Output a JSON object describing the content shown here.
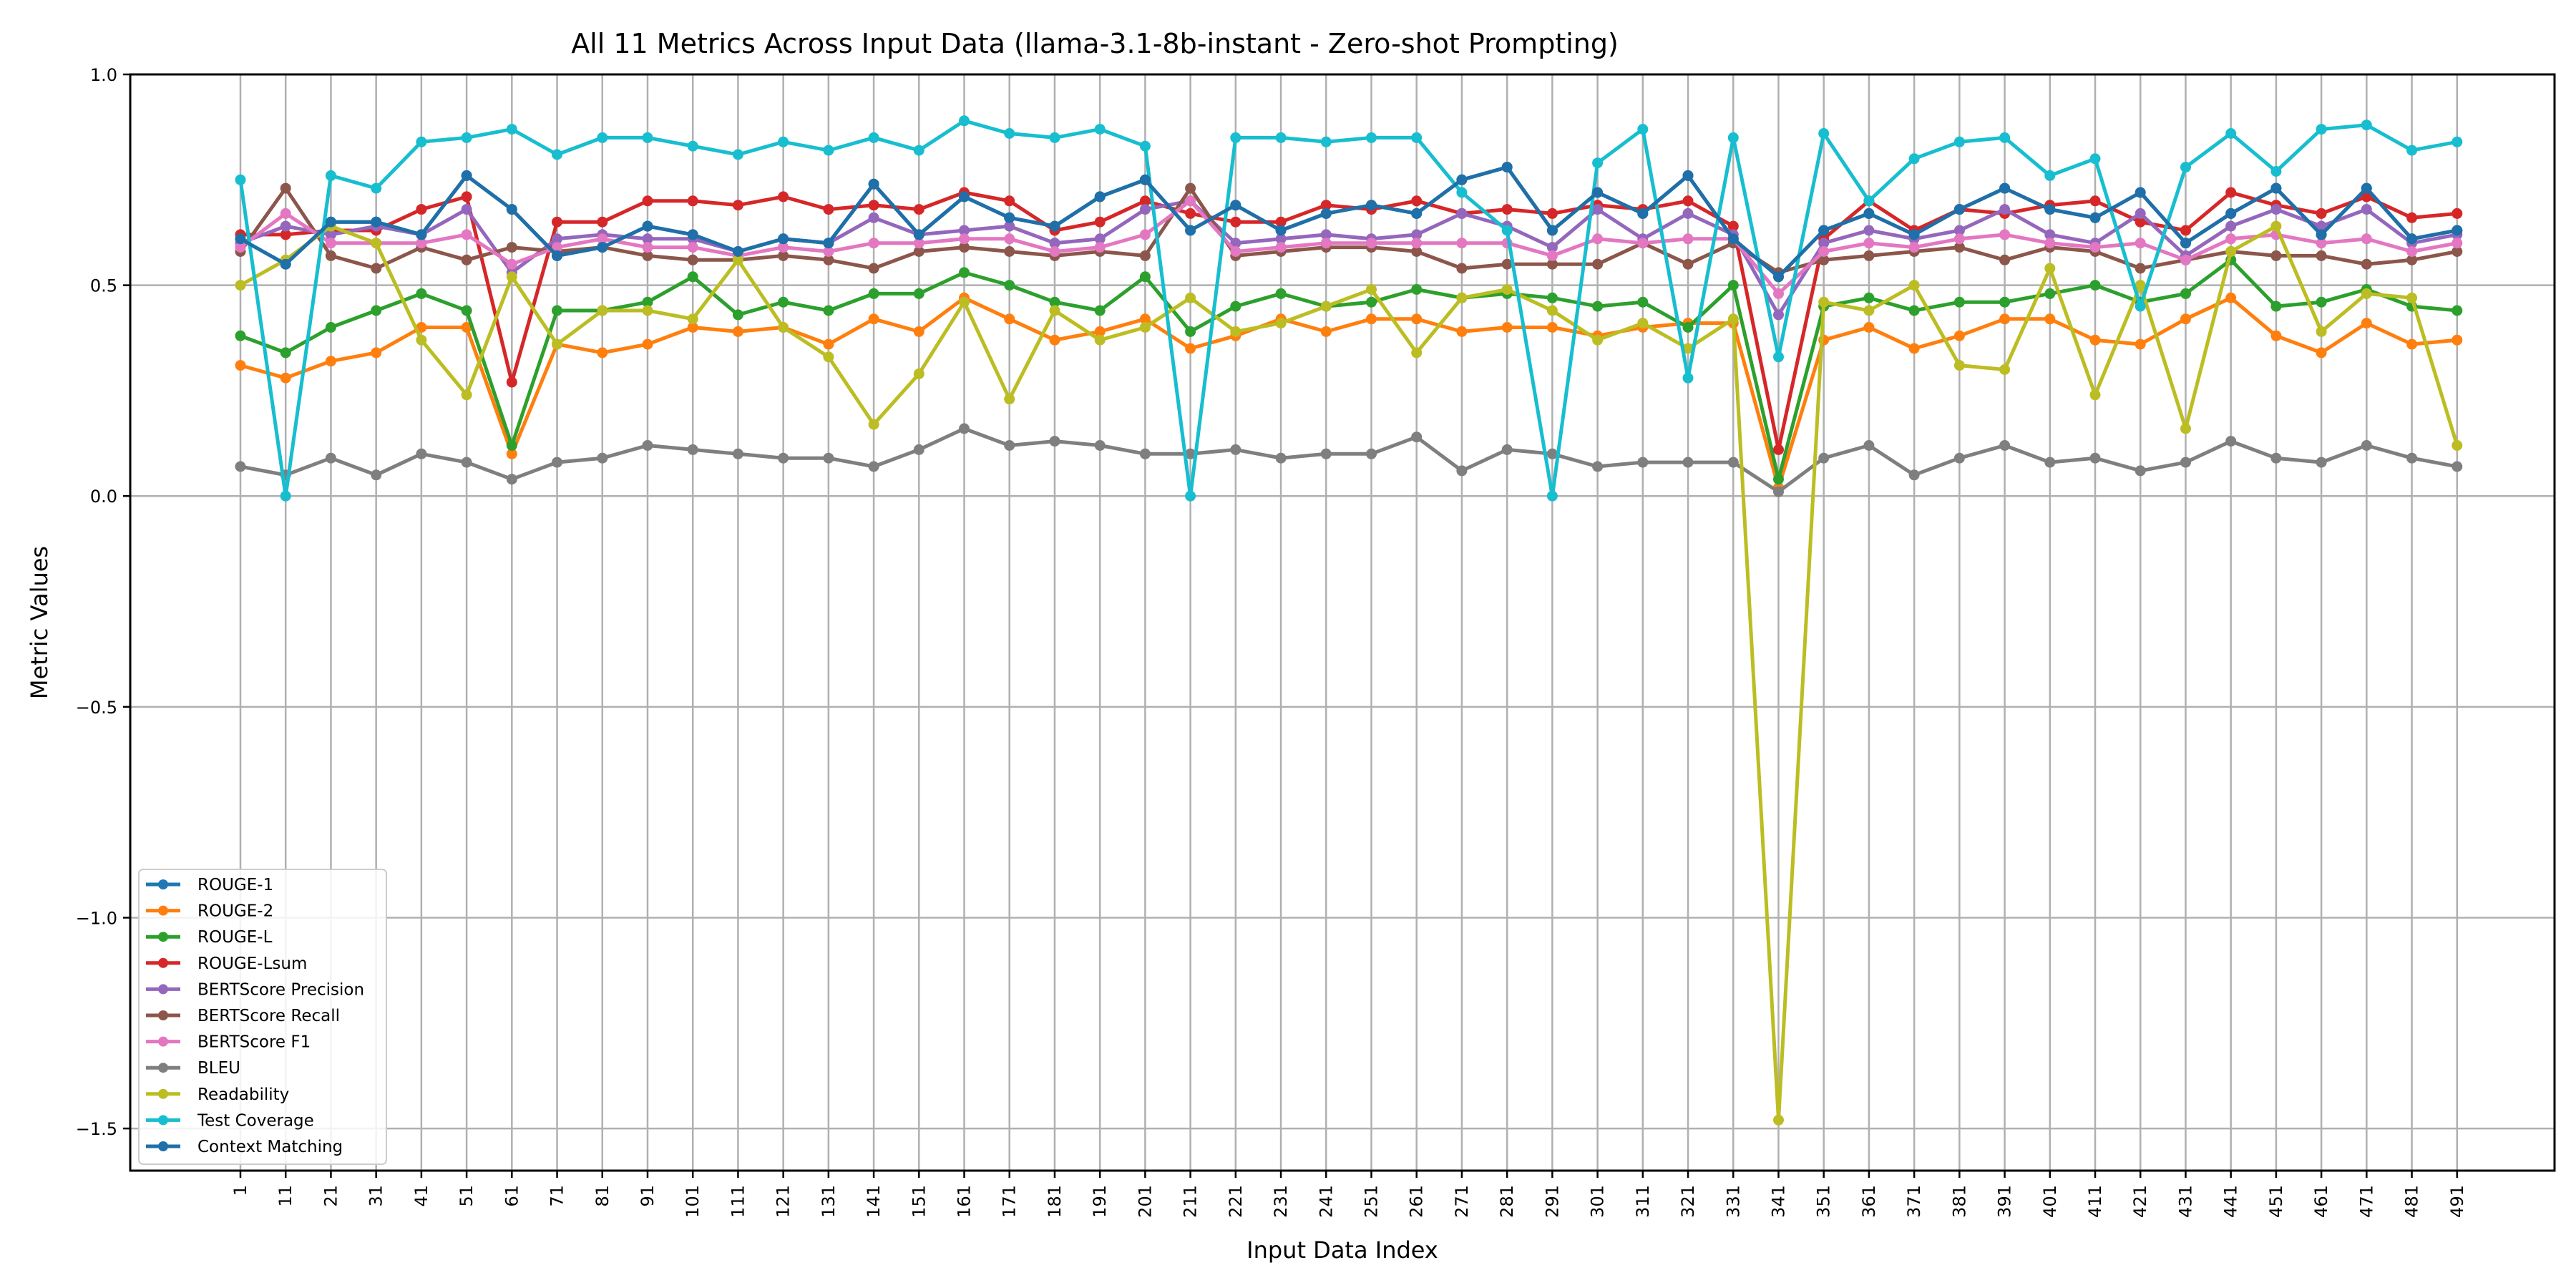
{
  "chart_data": {
    "type": "line",
    "title": "All 11 Metrics Across Input Data (llama-3.1-8b-instant - Zero-shot Prompting)",
    "xlabel": "Input Data Index",
    "ylabel": "Metric Values",
    "ylim": [
      -1.6,
      1.0
    ],
    "yticks": [
      1.0,
      0.5,
      0.0,
      -0.5,
      -1.0,
      -1.5
    ],
    "ytick_labels": [
      "1.0",
      "0.5",
      "0.0",
      "−0.5",
      "−1.0",
      "−1.5"
    ],
    "grid": true,
    "legend_position": "lower-left",
    "x": [
      1,
      11,
      21,
      31,
      41,
      51,
      61,
      71,
      81,
      91,
      101,
      111,
      121,
      131,
      141,
      151,
      161,
      171,
      181,
      191,
      201,
      211,
      221,
      231,
      241,
      251,
      261,
      271,
      281,
      291,
      301,
      311,
      321,
      331,
      341,
      351,
      361,
      371,
      381,
      391,
      401,
      411,
      421,
      431,
      441,
      451,
      461,
      471,
      481,
      491
    ],
    "series": [
      {
        "name": "ROUGE-1",
        "color": "#1f77b4",
        "values": [
          0.61,
          0.55,
          0.65,
          0.65,
          0.62,
          0.76,
          0.68,
          0.57,
          0.59,
          0.64,
          0.62,
          0.58,
          0.61,
          0.6,
          0.74,
          0.62,
          0.71,
          0.66,
          0.64,
          0.71,
          0.75,
          0.63,
          0.69,
          0.63,
          0.67,
          0.69,
          0.67,
          0.75,
          0.78,
          0.63,
          0.72,
          0.67,
          0.76,
          0.61,
          0.52,
          0.63,
          0.67,
          0.62,
          0.68,
          0.73,
          0.68,
          0.66,
          0.72,
          0.6,
          0.67,
          0.73,
          0.62,
          0.73,
          0.61,
          0.63
        ]
      },
      {
        "name": "ROUGE-2",
        "color": "#ff7f0e",
        "values": [
          0.31,
          0.28,
          0.32,
          0.34,
          0.4,
          0.4,
          0.1,
          0.36,
          0.34,
          0.36,
          0.4,
          0.39,
          0.4,
          0.36,
          0.42,
          0.39,
          0.47,
          0.42,
          0.37,
          0.39,
          0.42,
          0.35,
          0.38,
          0.42,
          0.39,
          0.42,
          0.42,
          0.39,
          0.4,
          0.4,
          0.38,
          0.4,
          0.41,
          0.41,
          0.02,
          0.37,
          0.4,
          0.35,
          0.38,
          0.42,
          0.42,
          0.37,
          0.36,
          0.42,
          0.47,
          0.38,
          0.34,
          0.41,
          0.36,
          0.37
        ]
      },
      {
        "name": "ROUGE-L",
        "color": "#2ca02c",
        "values": [
          0.38,
          0.34,
          0.4,
          0.44,
          0.48,
          0.44,
          0.12,
          0.44,
          0.44,
          0.46,
          0.52,
          0.43,
          0.46,
          0.44,
          0.48,
          0.48,
          0.53,
          0.5,
          0.46,
          0.44,
          0.52,
          0.39,
          0.45,
          0.48,
          0.45,
          0.46,
          0.49,
          0.47,
          0.48,
          0.47,
          0.45,
          0.46,
          0.4,
          0.5,
          0.04,
          0.45,
          0.47,
          0.44,
          0.46,
          0.46,
          0.48,
          0.5,
          0.46,
          0.48,
          0.56,
          0.45,
          0.46,
          0.49,
          0.45,
          0.44
        ]
      },
      {
        "name": "ROUGE-Lsum",
        "color": "#d62728",
        "values": [
          0.62,
          0.62,
          0.63,
          0.63,
          0.68,
          0.71,
          0.27,
          0.65,
          0.65,
          0.7,
          0.7,
          0.69,
          0.71,
          0.68,
          0.69,
          0.68,
          0.72,
          0.7,
          0.63,
          0.65,
          0.7,
          0.67,
          0.65,
          0.65,
          0.69,
          0.68,
          0.7,
          0.67,
          0.68,
          0.67,
          0.69,
          0.68,
          0.7,
          0.64,
          0.11,
          0.61,
          0.7,
          0.63,
          0.68,
          0.67,
          0.69,
          0.7,
          0.65,
          0.63,
          0.72,
          0.69,
          0.67,
          0.71,
          0.66,
          0.67
        ]
      },
      {
        "name": "BERTScore Precision",
        "color": "#9467bd",
        "values": [
          0.6,
          0.64,
          0.62,
          0.64,
          0.62,
          0.68,
          0.53,
          0.61,
          0.62,
          0.61,
          0.61,
          0.58,
          0.61,
          0.6,
          0.66,
          0.62,
          0.63,
          0.64,
          0.6,
          0.61,
          0.68,
          0.7,
          0.6,
          0.61,
          0.62,
          0.61,
          0.62,
          0.67,
          0.64,
          0.59,
          0.68,
          0.61,
          0.67,
          0.62,
          0.43,
          0.6,
          0.63,
          0.61,
          0.63,
          0.68,
          0.62,
          0.6,
          0.67,
          0.57,
          0.64,
          0.68,
          0.64,
          0.68,
          0.6,
          0.62
        ]
      },
      {
        "name": "BERTScore Recall",
        "color": "#8c564b",
        "values": [
          0.58,
          0.73,
          0.57,
          0.54,
          0.59,
          0.56,
          0.59,
          0.58,
          0.59,
          0.57,
          0.56,
          0.56,
          0.57,
          0.56,
          0.54,
          0.58,
          0.59,
          0.58,
          0.57,
          0.58,
          0.57,
          0.73,
          0.57,
          0.58,
          0.59,
          0.59,
          0.58,
          0.54,
          0.55,
          0.55,
          0.55,
          0.6,
          0.55,
          0.6,
          0.53,
          0.56,
          0.57,
          0.58,
          0.59,
          0.56,
          0.59,
          0.58,
          0.54,
          0.56,
          0.58,
          0.57,
          0.57,
          0.55,
          0.56,
          0.58
        ]
      },
      {
        "name": "BERTScore F1",
        "color": "#e377c2",
        "values": [
          0.59,
          0.67,
          0.6,
          0.6,
          0.6,
          0.62,
          0.55,
          0.59,
          0.61,
          0.59,
          0.59,
          0.57,
          0.59,
          0.58,
          0.6,
          0.6,
          0.61,
          0.61,
          0.58,
          0.59,
          0.62,
          0.7,
          0.58,
          0.59,
          0.6,
          0.6,
          0.6,
          0.6,
          0.6,
          0.57,
          0.61,
          0.6,
          0.61,
          0.61,
          0.48,
          0.58,
          0.6,
          0.59,
          0.61,
          0.62,
          0.6,
          0.59,
          0.6,
          0.56,
          0.61,
          0.62,
          0.6,
          0.61,
          0.58,
          0.6
        ]
      },
      {
        "name": "BLEU",
        "color": "#7f7f7f",
        "values": [
          0.07,
          0.05,
          0.09,
          0.05,
          0.1,
          0.08,
          0.04,
          0.08,
          0.09,
          0.12,
          0.11,
          0.1,
          0.09,
          0.09,
          0.07,
          0.11,
          0.16,
          0.12,
          0.13,
          0.12,
          0.1,
          0.1,
          0.11,
          0.09,
          0.1,
          0.1,
          0.14,
          0.06,
          0.11,
          0.1,
          0.07,
          0.08,
          0.08,
          0.08,
          0.01,
          0.09,
          0.12,
          0.05,
          0.09,
          0.12,
          0.08,
          0.09,
          0.06,
          0.08,
          0.13,
          0.09,
          0.08,
          0.12,
          0.09,
          0.07
        ]
      },
      {
        "name": "Readability",
        "color": "#bcbd22",
        "values": [
          0.5,
          0.56,
          0.64,
          0.6,
          0.37,
          0.24,
          0.52,
          0.36,
          0.44,
          0.44,
          0.42,
          0.56,
          0.4,
          0.33,
          0.17,
          0.29,
          0.46,
          0.23,
          0.44,
          0.37,
          0.4,
          0.47,
          0.39,
          0.41,
          0.45,
          0.49,
          0.34,
          0.47,
          0.49,
          0.44,
          0.37,
          0.41,
          0.35,
          0.42,
          -1.48,
          0.46,
          0.44,
          0.5,
          0.31,
          0.3,
          0.54,
          0.24,
          0.5,
          0.16,
          0.58,
          0.64,
          0.39,
          0.48,
          0.47,
          0.12
        ]
      },
      {
        "name": "Test Coverage",
        "color": "#17becf",
        "values": [
          0.75,
          0.0,
          0.76,
          0.73,
          0.84,
          0.85,
          0.87,
          0.81,
          0.85,
          0.85,
          0.83,
          0.81,
          0.84,
          0.82,
          0.85,
          0.82,
          0.89,
          0.86,
          0.85,
          0.87,
          0.83,
          0.0,
          0.85,
          0.85,
          0.84,
          0.85,
          0.85,
          0.72,
          0.63,
          0.0,
          0.79,
          0.87,
          0.28,
          0.85,
          0.33,
          0.86,
          0.7,
          0.8,
          0.84,
          0.85,
          0.76,
          0.8,
          0.45,
          0.78,
          0.86,
          0.77,
          0.87,
          0.88,
          0.82,
          0.84
        ]
      },
      {
        "name": "Context Matching",
        "color": "#1f6fa8",
        "values": [
          0.61,
          0.55,
          0.65,
          0.65,
          0.62,
          0.76,
          0.68,
          0.57,
          0.59,
          0.64,
          0.62,
          0.58,
          0.61,
          0.6,
          0.74,
          0.62,
          0.71,
          0.66,
          0.64,
          0.71,
          0.75,
          0.63,
          0.69,
          0.63,
          0.67,
          0.69,
          0.67,
          0.75,
          0.78,
          0.63,
          0.72,
          0.67,
          0.76,
          0.61,
          0.52,
          0.63,
          0.67,
          0.62,
          0.68,
          0.73,
          0.68,
          0.66,
          0.72,
          0.6,
          0.67,
          0.73,
          0.62,
          0.73,
          0.61,
          0.63
        ]
      }
    ]
  }
}
